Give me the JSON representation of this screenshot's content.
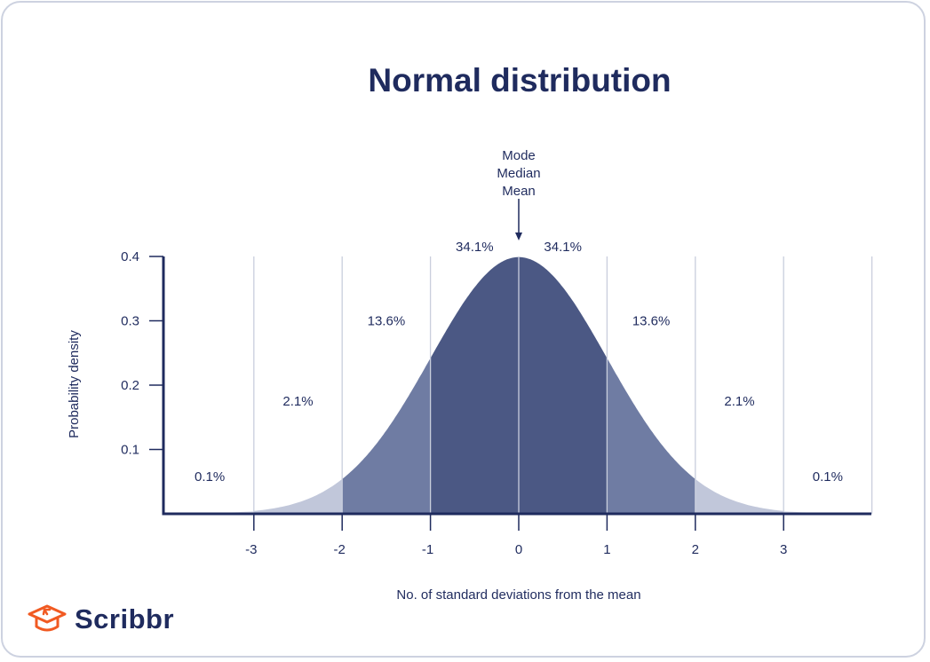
{
  "chart_data": {
    "type": "area",
    "title": "Normal distribution",
    "xlabel": "No. of standard deviations from the mean",
    "ylabel": "Probability density",
    "xlim": [
      -4,
      4
    ],
    "ylim": [
      0,
      0.4
    ],
    "x_ticks": [
      -3,
      -2,
      -1,
      0,
      1,
      2,
      3
    ],
    "x_tick_labels": [
      "-3",
      "-2",
      "-1",
      "0",
      "1",
      "2",
      "3"
    ],
    "y_ticks": [
      0.1,
      0.2,
      0.3,
      0.4
    ],
    "y_tick_labels": [
      "0.1",
      "0.2",
      "0.3",
      "0.4"
    ],
    "grid": "vertical",
    "mean": 0,
    "sd": 1,
    "regions": [
      {
        "from": -4,
        "to": -3,
        "label": "0.1%",
        "color": "#e3e6ef",
        "label_x": -3.5,
        "label_y": 0.058
      },
      {
        "from": -3,
        "to": -2,
        "label": "2.1%",
        "color": "#c1c7da",
        "label_x": -2.5,
        "label_y": 0.175
      },
      {
        "from": -2,
        "to": -1,
        "label": "13.6%",
        "color": "#6f7ca3",
        "label_x": -1.5,
        "label_y": 0.3
      },
      {
        "from": -1,
        "to": 0,
        "label": "34.1%",
        "color": "#4b5884",
        "label_x": -0.5,
        "label_y": 0.415
      },
      {
        "from": 0,
        "to": 1,
        "label": "34.1%",
        "color": "#4b5884",
        "label_x": 0.5,
        "label_y": 0.415
      },
      {
        "from": 1,
        "to": 2,
        "label": "13.6%",
        "color": "#6f7ca3",
        "label_x": 1.5,
        "label_y": 0.3
      },
      {
        "from": 2,
        "to": 3,
        "label": "2.1%",
        "color": "#c1c7da",
        "label_x": 2.5,
        "label_y": 0.175
      },
      {
        "from": 3,
        "to": 4,
        "label": "0.1%",
        "color": "#e3e6ef",
        "label_x": 3.5,
        "label_y": 0.058
      }
    ],
    "annotation": {
      "lines": [
        "Mode",
        "Median",
        "Mean"
      ],
      "x": 0
    },
    "colors": {
      "axis": "#1f2b5e",
      "grid": "#c9cedd"
    }
  },
  "brand": {
    "name": "Scribbr",
    "color": "#f15a22"
  }
}
